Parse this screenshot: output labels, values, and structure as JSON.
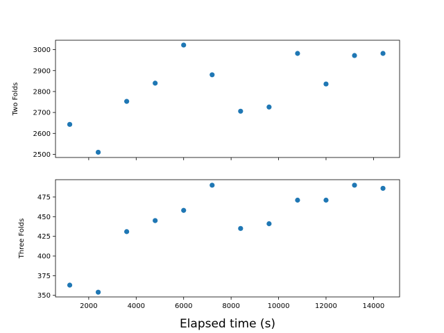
{
  "chart_data": {
    "type": "scatter",
    "xlabel": "Elapsed time (s)",
    "xlim": [
      600,
      15100
    ],
    "xticks": [
      2000,
      4000,
      6000,
      8000,
      10000,
      12000,
      14000
    ],
    "marker_color": "#1f77b4",
    "grid": false,
    "panels": [
      {
        "ylabel": "Two Folds",
        "ylim": [
          2485,
          3045
        ],
        "yticks": [
          2500,
          2600,
          2700,
          2800,
          2900,
          3000
        ],
        "x": [
          1200,
          2400,
          3600,
          4800,
          6000,
          7200,
          8400,
          9600,
          10800,
          12000,
          13200,
          14400
        ],
        "y": [
          2643,
          2510,
          2753,
          2840,
          3022,
          2880,
          2706,
          2726,
          2982,
          2836,
          2972,
          2982
        ]
      },
      {
        "ylabel": "Three Folds",
        "ylim": [
          348,
          497
        ],
        "yticks": [
          350,
          375,
          400,
          425,
          450,
          475
        ],
        "x": [
          1200,
          2400,
          3600,
          4800,
          6000,
          7200,
          8400,
          9600,
          10800,
          12000,
          13200,
          14400
        ],
        "y": [
          363,
          354,
          431,
          445,
          458,
          490,
          435,
          441,
          471,
          471,
          490,
          486
        ]
      }
    ]
  }
}
